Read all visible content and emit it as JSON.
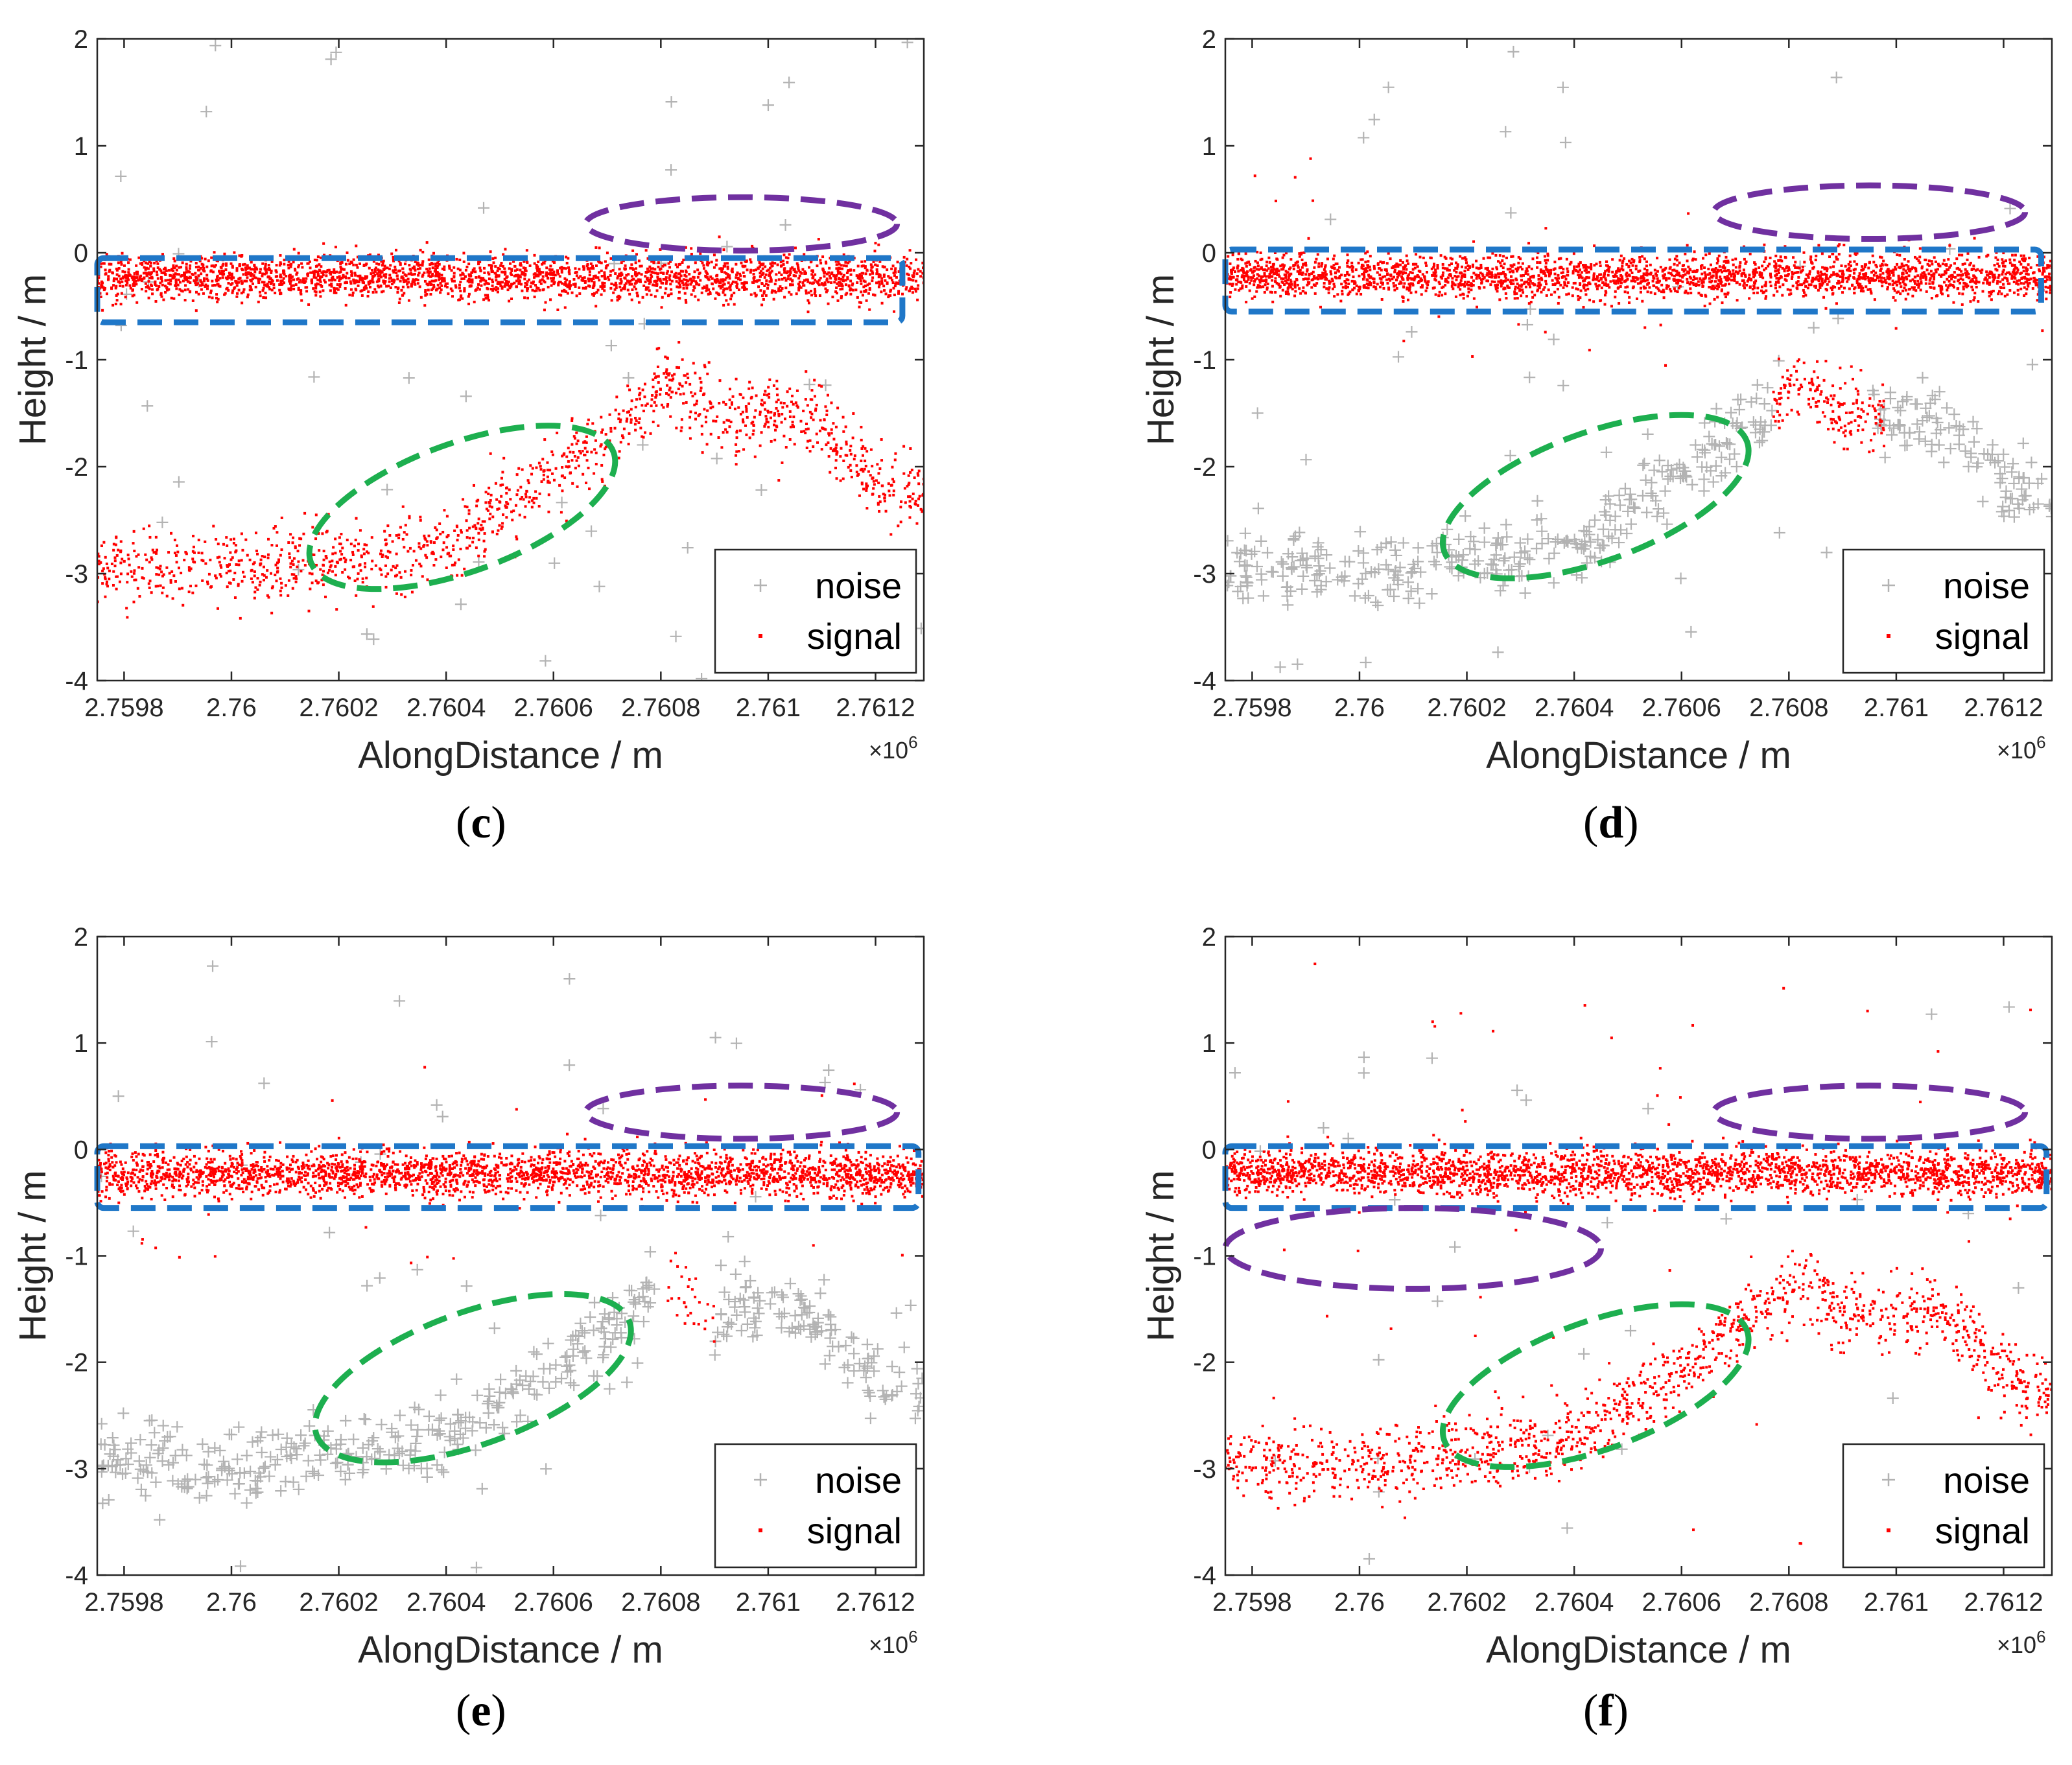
{
  "chart_data": [
    {
      "panel": "c",
      "type": "scatter",
      "caption_letter": "c",
      "xlabel": "AlongDistance / m",
      "ylabel": "Height / m",
      "x_exponent": "×10",
      "x_exponent_power": "6",
      "xlim": [
        2.75975,
        2.76129
      ],
      "ylim": [
        -4,
        2
      ],
      "xticks": [
        2.7598,
        2.76,
        2.7602,
        2.7604,
        2.7606,
        2.7608,
        2.761,
        2.7612
      ],
      "xtick_labels": [
        "2.7598",
        "2.76",
        "2.7602",
        "2.7604",
        "2.7606",
        "2.7608",
        "2.761",
        "2.7612"
      ],
      "yticks": [
        -4,
        -3,
        -2,
        -1,
        0,
        1,
        2
      ],
      "ytick_labels": [
        "-4",
        "-3",
        "-2",
        "-1",
        "0",
        "1",
        "2"
      ],
      "legend": [
        "noise",
        "signal"
      ],
      "legend_position": "bottom-right",
      "series": [
        {
          "name": "noise",
          "marker": "+",
          "color": "#b3b3b3",
          "bands": [
            {
              "from": "surface",
              "to": "surface",
              "amount": 0
            },
            {
              "from": "bottom",
              "to": "bottom",
              "amount": 0
            }
          ],
          "scattered": 50,
          "scattered_range": [
            -4,
            2
          ]
        },
        {
          "name": "signal",
          "marker": ".",
          "color": "#ff0000",
          "bands": [
            {
              "from": "surface",
              "to": "surface",
              "amount": 1
            },
            {
              "from": "bottom",
              "to": "bottom",
              "amount": 1
            }
          ],
          "scattered": 0,
          "scattered_range": [
            -1,
            1.6
          ]
        }
      ],
      "surface_band": {
        "center": -0.23,
        "spread": 0.17
      },
      "bottom_profile": [
        [
          2.7598,
          -2.95
        ],
        [
          2.7601,
          -2.95
        ],
        [
          2.7602,
          -2.85
        ],
        [
          2.7604,
          -2.75
        ],
        [
          2.7605,
          -2.4
        ],
        [
          2.7606,
          -2.05
        ],
        [
          2.7607,
          -1.7
        ],
        [
          2.76075,
          -1.5
        ],
        [
          2.7608,
          -1.25
        ],
        [
          2.76085,
          -1.3
        ],
        [
          2.7609,
          -1.55
        ],
        [
          2.761,
          -1.5
        ],
        [
          2.7611,
          -1.6
        ],
        [
          2.7612,
          -2.15
        ],
        [
          2.7613,
          -2.3
        ]
      ],
      "annotations": [
        {
          "shape": "rect",
          "color": "#1f77c8",
          "x0": 2.75975,
          "x1": 2.76125,
          "y0": -0.65,
          "y1": -0.05
        },
        {
          "shape": "ellipse",
          "color": "#7030a0",
          "cx": 2.76095,
          "cy": 0.27,
          "rx": 0.00029,
          "ry": 0.25,
          "angle": 0
        },
        {
          "shape": "ellipse",
          "color": "#1daf4f",
          "cx": 2.76043,
          "cy": -2.38,
          "rx": 0.0003,
          "ry": 0.6,
          "angle": -20
        }
      ]
    },
    {
      "panel": "d",
      "type": "scatter",
      "caption_letter": "d",
      "xlabel": "AlongDistance / m",
      "ylabel": "Height / m",
      "x_exponent": "×10",
      "x_exponent_power": "6",
      "xlim": [
        2.75975,
        2.76129
      ],
      "ylim": [
        -4,
        2
      ],
      "xticks": [
        2.7598,
        2.76,
        2.7602,
        2.7604,
        2.7606,
        2.7608,
        2.761,
        2.7612
      ],
      "xtick_labels": [
        "2.7598",
        "2.76",
        "2.7602",
        "2.7604",
        "2.7606",
        "2.7608",
        "2.761",
        "2.7612"
      ],
      "yticks": [
        -4,
        -3,
        -2,
        -1,
        0,
        1,
        2
      ],
      "ytick_labels": [
        "-4",
        "-3",
        "-2",
        "-1",
        "0",
        "1",
        "2"
      ],
      "legend": [
        "noise",
        "signal"
      ],
      "legend_position": "bottom-right",
      "series": [
        {
          "name": "noise",
          "marker": "+",
          "color": "#b3b3b3",
          "bands": [
            {
              "from": "surface",
              "to": "surface",
              "amount": 0
            },
            {
              "from": "bottom",
              "to": "bottom",
              "amount": 1,
              "x_range": [
                2.75975,
                2.76077
              ]
            },
            {
              "from": "bottom",
              "to": "bottom",
              "amount": 1,
              "x_range": [
                2.76095,
                2.76129
              ]
            }
          ],
          "scattered": 50,
          "scattered_range": [
            -4,
            2
          ]
        },
        {
          "name": "signal",
          "marker": ".",
          "color": "#ff0000",
          "bands": [
            {
              "from": "surface",
              "to": "surface",
              "amount": 1
            },
            {
              "from": "bottom",
              "to": "bottom",
              "amount": 1,
              "x_range": [
                2.76077,
                2.76098
              ]
            }
          ],
          "scattered": 25,
          "scattered_range": [
            -1.2,
            1.0
          ]
        }
      ],
      "surface_band": {
        "center": -0.22,
        "spread": 0.16
      },
      "bottom_profile": [
        [
          2.7598,
          -2.95
        ],
        [
          2.7601,
          -2.95
        ],
        [
          2.7602,
          -2.85
        ],
        [
          2.7604,
          -2.75
        ],
        [
          2.7605,
          -2.4
        ],
        [
          2.7606,
          -2.05
        ],
        [
          2.7607,
          -1.7
        ],
        [
          2.76075,
          -1.5
        ],
        [
          2.7608,
          -1.25
        ],
        [
          2.76085,
          -1.3
        ],
        [
          2.7609,
          -1.55
        ],
        [
          2.761,
          -1.5
        ],
        [
          2.7611,
          -1.6
        ],
        [
          2.7612,
          -2.15
        ],
        [
          2.7613,
          -2.3
        ]
      ],
      "annotations": [
        {
          "shape": "rect",
          "color": "#1f77c8",
          "x0": 2.75975,
          "x1": 2.76127,
          "y0": -0.55,
          "y1": 0.03
        },
        {
          "shape": "ellipse",
          "color": "#7030a0",
          "cx": 2.76095,
          "cy": 0.38,
          "rx": 0.00029,
          "ry": 0.25,
          "angle": 0
        },
        {
          "shape": "ellipse",
          "color": "#1daf4f",
          "cx": 2.76044,
          "cy": -2.28,
          "rx": 0.0003,
          "ry": 0.6,
          "angle": -20
        }
      ]
    },
    {
      "panel": "e",
      "type": "scatter",
      "caption_letter": "e",
      "xlabel": "AlongDistance / m",
      "ylabel": "Height / m",
      "x_exponent": "×10",
      "x_exponent_power": "6",
      "xlim": [
        2.75975,
        2.76129
      ],
      "ylim": [
        -4,
        2
      ],
      "xticks": [
        2.7598,
        2.76,
        2.7602,
        2.7604,
        2.7606,
        2.7608,
        2.761,
        2.7612
      ],
      "xtick_labels": [
        "2.7598",
        "2.76",
        "2.7602",
        "2.7604",
        "2.7606",
        "2.7608",
        "2.761",
        "2.7612"
      ],
      "yticks": [
        -4,
        -3,
        -2,
        -1,
        0,
        1,
        2
      ],
      "ytick_labels": [
        "-4",
        "-3",
        "-2",
        "-1",
        "0",
        "1",
        "2"
      ],
      "legend": [
        "noise",
        "signal"
      ],
      "legend_position": "bottom-right",
      "series": [
        {
          "name": "noise",
          "marker": "+",
          "color": "#b3b3b3",
          "bands": [
            {
              "from": "surface",
              "to": "surface",
              "amount": 0
            },
            {
              "from": "bottom",
              "to": "bottom",
              "amount": 1,
              "x_range": [
                2.75975,
                2.7608
              ]
            },
            {
              "from": "bottom",
              "to": "bottom",
              "amount": 1,
              "x_range": [
                2.7609,
                2.76129
              ]
            }
          ],
          "scattered": 50,
          "scattered_range": [
            -4,
            2
          ]
        },
        {
          "name": "signal",
          "marker": ".",
          "color": "#ff0000",
          "bands": [
            {
              "from": "surface",
              "to": "surface",
              "amount": 1
            },
            {
              "from": "bottom",
              "to": "bottom",
              "amount": 0.4,
              "x_range": [
                2.76081,
                2.7609
              ]
            }
          ],
          "scattered": 25,
          "scattered_range": [
            -1.2,
            0.8
          ]
        }
      ],
      "surface_band": {
        "center": -0.23,
        "spread": 0.17
      },
      "bottom_profile": [
        [
          2.7598,
          -2.95
        ],
        [
          2.7601,
          -2.95
        ],
        [
          2.7602,
          -2.85
        ],
        [
          2.7604,
          -2.75
        ],
        [
          2.7605,
          -2.4
        ],
        [
          2.7606,
          -2.05
        ],
        [
          2.7607,
          -1.7
        ],
        [
          2.76075,
          -1.5
        ],
        [
          2.7608,
          -1.25
        ],
        [
          2.76085,
          -1.3
        ],
        [
          2.7609,
          -1.55
        ],
        [
          2.761,
          -1.5
        ],
        [
          2.7611,
          -1.6
        ],
        [
          2.7612,
          -2.15
        ],
        [
          2.7613,
          -2.3
        ]
      ],
      "annotations": [
        {
          "shape": "rect",
          "color": "#1f77c8",
          "x0": 2.75975,
          "x1": 2.76128,
          "y0": -0.55,
          "y1": 0.03
        },
        {
          "shape": "ellipse",
          "color": "#7030a0",
          "cx": 2.76095,
          "cy": 0.35,
          "rx": 0.00029,
          "ry": 0.25,
          "angle": 0
        },
        {
          "shape": "ellipse",
          "color": "#1daf4f",
          "cx": 2.76045,
          "cy": -2.15,
          "rx": 0.00031,
          "ry": 0.62,
          "angle": -20
        }
      ]
    },
    {
      "panel": "f",
      "type": "scatter",
      "caption_letter": "f",
      "xlabel": "AlongDistance / m",
      "ylabel": "Height / m",
      "x_exponent": "×10",
      "x_exponent_power": "6",
      "xlim": [
        2.75975,
        2.76129
      ],
      "ylim": [
        -4,
        2
      ],
      "xticks": [
        2.7598,
        2.76,
        2.7602,
        2.7604,
        2.7606,
        2.7608,
        2.761,
        2.7612
      ],
      "xtick_labels": [
        "2.7598",
        "2.76",
        "2.7602",
        "2.7604",
        "2.7606",
        "2.7608",
        "2.761",
        "2.7612"
      ],
      "yticks": [
        -4,
        -3,
        -2,
        -1,
        0,
        1,
        2
      ],
      "ytick_labels": [
        "-4",
        "-3",
        "-2",
        "-1",
        "0",
        "1",
        "2"
      ],
      "legend": [
        "noise",
        "signal"
      ],
      "legend_position": "bottom-right",
      "series": [
        {
          "name": "noise",
          "marker": "+",
          "color": "#b3b3b3",
          "bands": [
            {
              "from": "surface",
              "to": "surface",
              "amount": 0
            },
            {
              "from": "bottom",
              "to": "bottom",
              "amount": 0
            }
          ],
          "scattered": 35,
          "scattered_range": [
            -4,
            2
          ]
        },
        {
          "name": "signal",
          "marker": ".",
          "color": "#ff0000",
          "bands": [
            {
              "from": "surface",
              "to": "surface",
              "amount": 1
            },
            {
              "from": "bottom",
              "to": "bottom",
              "amount": 1
            }
          ],
          "scattered": 60,
          "scattered_range": [
            -4,
            2
          ]
        }
      ],
      "surface_band": {
        "center": -0.22,
        "spread": 0.17
      },
      "bottom_profile": [
        [
          2.7598,
          -2.95
        ],
        [
          2.7601,
          -2.95
        ],
        [
          2.7602,
          -2.85
        ],
        [
          2.7604,
          -2.75
        ],
        [
          2.7605,
          -2.4
        ],
        [
          2.7606,
          -2.05
        ],
        [
          2.7607,
          -1.7
        ],
        [
          2.76075,
          -1.5
        ],
        [
          2.7608,
          -1.25
        ],
        [
          2.76085,
          -1.3
        ],
        [
          2.7609,
          -1.55
        ],
        [
          2.761,
          -1.5
        ],
        [
          2.7611,
          -1.6
        ],
        [
          2.7612,
          -2.15
        ],
        [
          2.7613,
          -2.3
        ]
      ],
      "annotations": [
        {
          "shape": "rect",
          "color": "#1f77c8",
          "x0": 2.75975,
          "x1": 2.76128,
          "y0": -0.55,
          "y1": 0.03
        },
        {
          "shape": "ellipse",
          "color": "#7030a0",
          "cx": 2.76095,
          "cy": 0.35,
          "rx": 0.00029,
          "ry": 0.25,
          "angle": 0
        },
        {
          "shape": "ellipse",
          "color": "#7030a0",
          "cx": 2.7601,
          "cy": -0.93,
          "rx": 0.00035,
          "ry": 0.38,
          "angle": 0
        },
        {
          "shape": "ellipse",
          "color": "#1daf4f",
          "cx": 2.76044,
          "cy": -2.22,
          "rx": 0.0003,
          "ry": 0.6,
          "angle": -20
        }
      ]
    }
  ]
}
